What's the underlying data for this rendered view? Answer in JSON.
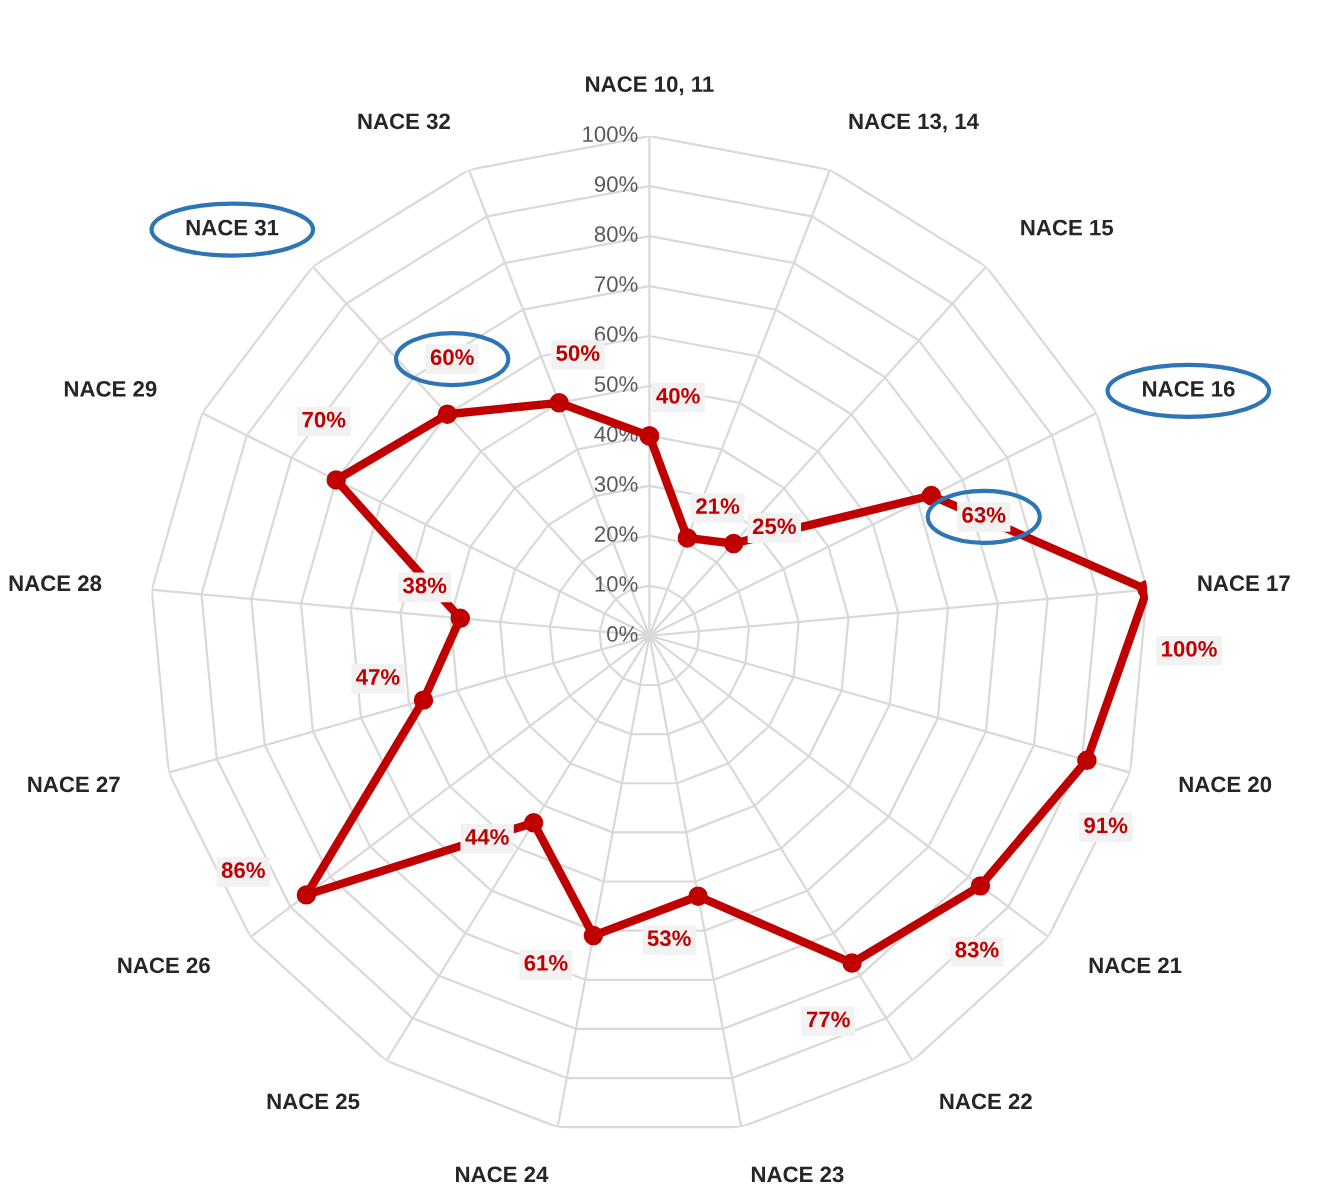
{
  "chart_data": {
    "type": "radar",
    "categories": [
      "NACE 10, 11",
      "NACE 13, 14",
      "NACE 15",
      "NACE 16",
      "NACE 17",
      "NACE 20",
      "NACE 21",
      "NACE 22",
      "NACE 23",
      "NACE 24",
      "NACE 25",
      "NACE 26",
      "NACE 27",
      "NACE 28",
      "NACE 29",
      "NACE 31",
      "NACE 32"
    ],
    "series": [
      {
        "color": "#c00000",
        "values": [
          40,
          21,
          25,
          63,
          100,
          91,
          83,
          77,
          53,
          61,
          44,
          86,
          47,
          38,
          70,
          60,
          50
        ]
      }
    ],
    "ylim": [
      0,
      100
    ],
    "yticks": [
      {
        "value": 0,
        "label": "0%"
      },
      {
        "value": 10,
        "label": "10%"
      },
      {
        "value": 20,
        "label": "20%"
      },
      {
        "value": 30,
        "label": "30%"
      },
      {
        "value": 40,
        "label": "40%"
      },
      {
        "value": 50,
        "label": "50%"
      },
      {
        "value": 60,
        "label": "60%"
      },
      {
        "value": 70,
        "label": "70%"
      },
      {
        "value": 80,
        "label": "80%"
      },
      {
        "value": 90,
        "label": "90%"
      },
      {
        "value": 100,
        "label": "100%"
      }
    ],
    "grid": true,
    "marker": "circle",
    "line_style": "solid",
    "value_labels": [
      "40%",
      "21%",
      "25%",
      "63%",
      "100%",
      "91%",
      "83%",
      "77%",
      "53%",
      "61%",
      "44%",
      "86%",
      "47%",
      "38%",
      "70%",
      "60%",
      "50%"
    ]
  }
}
